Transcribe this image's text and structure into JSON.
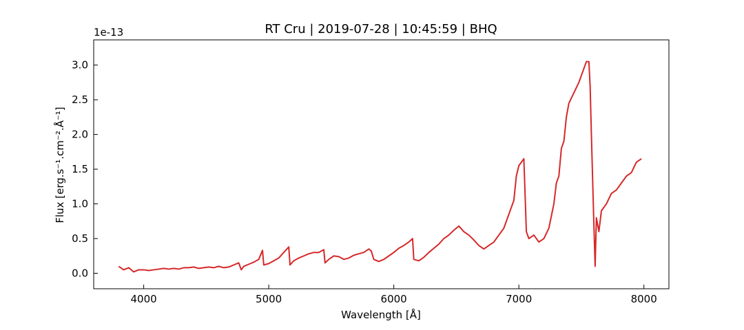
{
  "chart_data": {
    "type": "line",
    "title": "RT Cru | 2019-07-28 | 10:45:59 | BHQ",
    "x_label": "Wavelength [Å]",
    "y_label": "Flux [erg.s⁻¹.cm⁻².Å⁻¹]",
    "y_offset_label": "1e-13",
    "x": [
      3800,
      3840,
      3880,
      3920,
      3960,
      4000,
      4040,
      4080,
      4120,
      4160,
      4200,
      4240,
      4280,
      4320,
      4360,
      4400,
      4440,
      4480,
      4520,
      4560,
      4600,
      4640,
      4680,
      4720,
      4760,
      4780,
      4800,
      4840,
      4880,
      4920,
      4950,
      4960,
      5000,
      5040,
      5080,
      5120,
      5160,
      5170,
      5200,
      5240,
      5280,
      5320,
      5360,
      5400,
      5440,
      5450,
      5480,
      5520,
      5560,
      5600,
      5640,
      5680,
      5720,
      5760,
      5800,
      5820,
      5840,
      5880,
      5920,
      5960,
      6000,
      6040,
      6080,
      6120,
      6150,
      6160,
      6200,
      6240,
      6280,
      6320,
      6360,
      6400,
      6440,
      6480,
      6520,
      6560,
      6600,
      6640,
      6680,
      6720,
      6760,
      6800,
      6840,
      6880,
      6920,
      6960,
      6980,
      7000,
      7040,
      7060,
      7080,
      7120,
      7160,
      7200,
      7240,
      7280,
      7300,
      7320,
      7340,
      7360,
      7380,
      7400,
      7440,
      7480,
      7520,
      7540,
      7560,
      7570,
      7580,
      7600,
      7610,
      7620,
      7640,
      7660,
      7700,
      7740,
      7780,
      7820,
      7860,
      7900,
      7940,
      7980
    ],
    "series": [
      {
        "name": "RT Cru",
        "color": "#d62728",
        "values": [
          0.1,
          0.05,
          0.08,
          0.02,
          0.05,
          0.05,
          0.04,
          0.05,
          0.06,
          0.07,
          0.06,
          0.07,
          0.06,
          0.08,
          0.08,
          0.09,
          0.07,
          0.08,
          0.09,
          0.08,
          0.1,
          0.08,
          0.09,
          0.12,
          0.15,
          0.05,
          0.1,
          0.13,
          0.16,
          0.2,
          0.33,
          0.12,
          0.14,
          0.18,
          0.22,
          0.3,
          0.38,
          0.12,
          0.18,
          0.22,
          0.25,
          0.28,
          0.3,
          0.3,
          0.34,
          0.15,
          0.2,
          0.25,
          0.24,
          0.2,
          0.22,
          0.26,
          0.28,
          0.3,
          0.35,
          0.32,
          0.2,
          0.17,
          0.2,
          0.25,
          0.3,
          0.36,
          0.4,
          0.45,
          0.5,
          0.2,
          0.18,
          0.23,
          0.3,
          0.36,
          0.42,
          0.5,
          0.55,
          0.62,
          0.68,
          0.6,
          0.55,
          0.48,
          0.4,
          0.35,
          0.4,
          0.45,
          0.55,
          0.65,
          0.85,
          1.05,
          1.4,
          1.55,
          1.65,
          0.6,
          0.5,
          0.55,
          0.45,
          0.5,
          0.65,
          1.0,
          1.3,
          1.4,
          1.8,
          1.9,
          2.25,
          2.45,
          2.6,
          2.75,
          2.95,
          3.05,
          3.05,
          2.7,
          2.0,
          0.7,
          0.1,
          0.8,
          0.6,
          0.9,
          1.0,
          1.15,
          1.2,
          1.3,
          1.4,
          1.45,
          1.6,
          1.65
        ]
      }
    ],
    "xlim": [
      3600,
      8200
    ],
    "xticks": [
      4000,
      5000,
      6000,
      7000,
      8000
    ],
    "ylim": [
      -0.223,
      3.363
    ],
    "yticks": [
      {
        "value": 0,
        "label": "0.0"
      },
      {
        "value": 0.5,
        "label": "0.5"
      },
      {
        "value": 1,
        "label": "1.0"
      },
      {
        "value": 1.5,
        "label": "1.5"
      },
      {
        "value": 2,
        "label": "2.0"
      },
      {
        "value": 2.5,
        "label": "2.5"
      },
      {
        "value": 3,
        "label": "3.0"
      }
    ]
  }
}
